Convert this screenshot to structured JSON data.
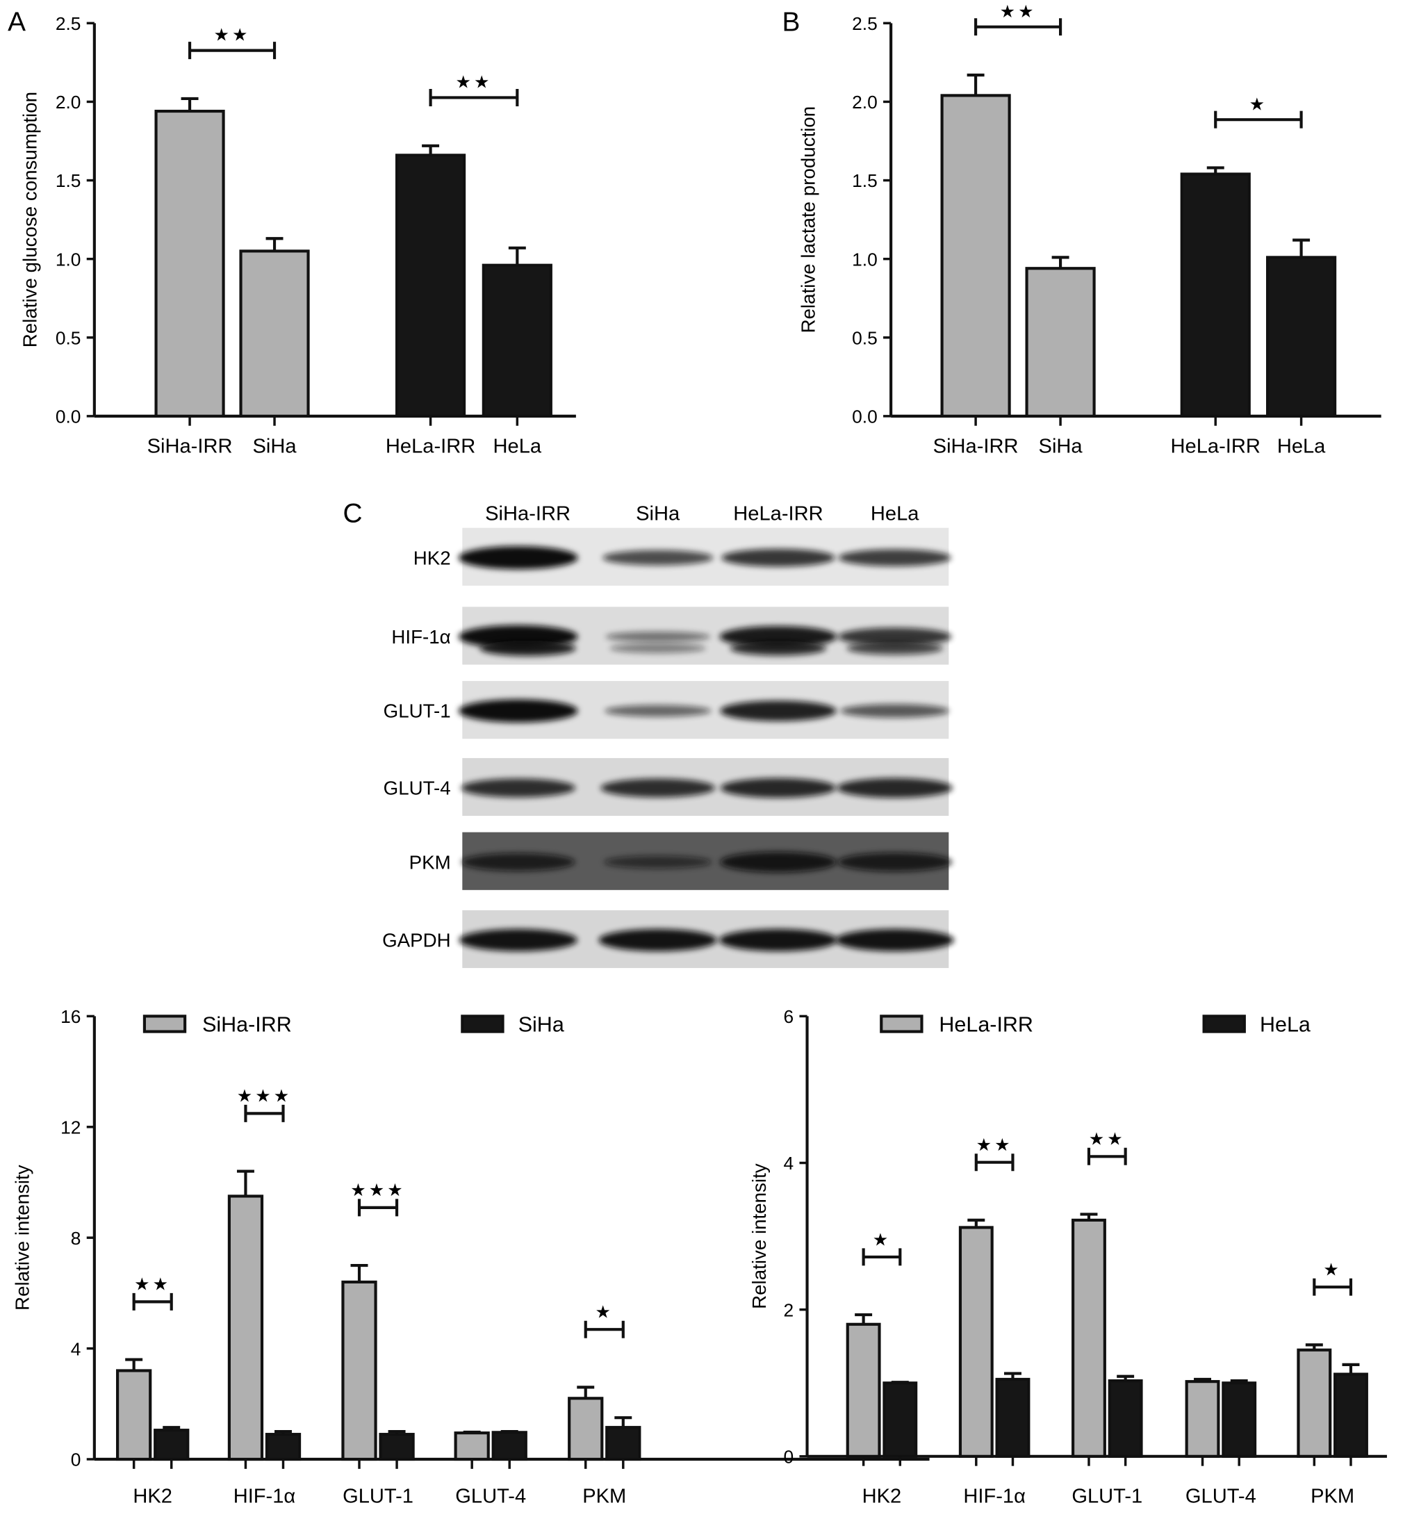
{
  "panel_labels": {
    "a": "A",
    "b": "B",
    "c": "C"
  },
  "western_blot": {
    "lanes": [
      "SiHa-IRR",
      "SiHa",
      "HeLa-IRR",
      "HeLa"
    ],
    "proteins": [
      "HK2",
      "HIF-1α",
      "GLUT-1",
      "GLUT-4",
      "PKM",
      "GAPDH"
    ]
  },
  "colors": {
    "irr": "#b0b0b0",
    "parental": "#161616"
  },
  "chart_data": [
    {
      "id": "A",
      "type": "bar",
      "ylabel": "Relative glucose consumption",
      "ylim": [
        0,
        2.5
      ],
      "yticks": [
        "0.0",
        "0.5",
        "1.0",
        "1.5",
        "2.0",
        "2.5"
      ],
      "categories": [
        "SiHa-IRR",
        "SiHa",
        "HeLa-IRR",
        "HeLa"
      ],
      "values": [
        1.94,
        1.05,
        1.66,
        0.96
      ],
      "errors": [
        0.08,
        0.08,
        0.06,
        0.11
      ],
      "colors": [
        "#b0b0b0",
        "#b0b0b0",
        "#161616",
        "#161616"
      ],
      "significance": [
        {
          "pair": [
            0,
            1
          ],
          "label": "★★"
        },
        {
          "pair": [
            2,
            3
          ],
          "label": "★★"
        }
      ]
    },
    {
      "id": "B",
      "type": "bar",
      "ylabel": "Relative lactate production",
      "ylim": [
        0,
        2.5
      ],
      "yticks": [
        "0.0",
        "0.5",
        "1.0",
        "1.5",
        "2.0",
        "2.5"
      ],
      "categories": [
        "SiHa-IRR",
        "SiHa",
        "HeLa-IRR",
        "HeLa"
      ],
      "values": [
        2.04,
        0.94,
        1.54,
        1.01
      ],
      "errors": [
        0.13,
        0.07,
        0.04,
        0.11
      ],
      "colors": [
        "#b0b0b0",
        "#b0b0b0",
        "#161616",
        "#161616"
      ],
      "significance": [
        {
          "pair": [
            0,
            1
          ],
          "label": "★★"
        },
        {
          "pair": [
            2,
            3
          ],
          "label": "★"
        }
      ]
    },
    {
      "id": "C-left",
      "type": "bar",
      "ylabel": "Relative intensity",
      "ylim": [
        0,
        16
      ],
      "yticks": [
        "0",
        "4",
        "8",
        "12",
        "16"
      ],
      "categories": [
        "HK2",
        "HIF-1α",
        "GLUT-1",
        "GLUT-4",
        "PKM"
      ],
      "legend": "top",
      "series": [
        {
          "name": "SiHa-IRR",
          "values": [
            3.2,
            9.5,
            6.4,
            0.95,
            2.2
          ],
          "errors": [
            0.4,
            0.9,
            0.6,
            0.03,
            0.4
          ]
        },
        {
          "name": "SiHa",
          "values": [
            1.05,
            0.9,
            0.9,
            0.97,
            1.15
          ],
          "errors": [
            0.1,
            0.1,
            0.1,
            0.03,
            0.35
          ]
        }
      ],
      "significance": [
        "★★",
        "★★★",
        "★★★",
        "",
        "★"
      ]
    },
    {
      "id": "C-right",
      "type": "bar",
      "ylabel": "Relative intensity",
      "ylim": [
        0,
        6
      ],
      "yticks": [
        "0",
        "2",
        "4",
        "6"
      ],
      "categories": [
        "HK2",
        "HIF-1α",
        "GLUT-1",
        "GLUT-4",
        "PKM"
      ],
      "legend": "top",
      "series": [
        {
          "name": "HeLa-IRR",
          "values": [
            1.8,
            3.12,
            3.22,
            1.02,
            1.45
          ],
          "errors": [
            0.13,
            0.1,
            0.08,
            0.03,
            0.07
          ]
        },
        {
          "name": "HeLa",
          "values": [
            1.0,
            1.05,
            1.03,
            1.0,
            1.12
          ],
          "errors": [
            0.01,
            0.08,
            0.06,
            0.03,
            0.13
          ]
        }
      ],
      "significance": [
        "★",
        "★★",
        "★★",
        "",
        "★"
      ]
    }
  ]
}
